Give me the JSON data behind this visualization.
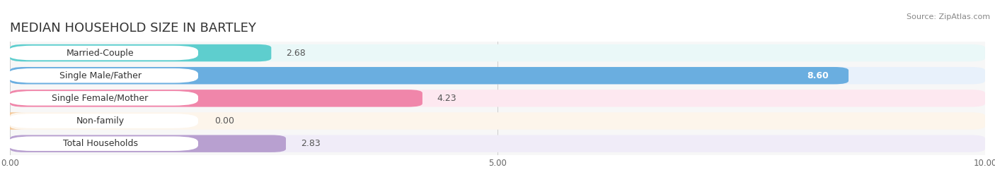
{
  "title": "MEDIAN HOUSEHOLD SIZE IN BARTLEY",
  "source": "Source: ZipAtlas.com",
  "categories": [
    "Married-Couple",
    "Single Male/Father",
    "Single Female/Mother",
    "Non-family",
    "Total Households"
  ],
  "values": [
    2.68,
    8.6,
    4.23,
    0.0,
    2.83
  ],
  "bar_colors": [
    "#5ecece",
    "#6aaee0",
    "#f086aa",
    "#f5c897",
    "#b8a0d0"
  ],
  "bar_bg_colors": [
    "#eaf8f8",
    "#e8f1fb",
    "#fde8f0",
    "#fdf5eb",
    "#f0ecf8"
  ],
  "label_bg_color": "#ffffff",
  "xlim": [
    0,
    10
  ],
  "xticks": [
    0.0,
    5.0,
    10.0
  ],
  "xtick_labels": [
    "0.00",
    "5.00",
    "10.00"
  ],
  "background_color": "#ffffff",
  "plot_bg_color": "#f7f7f7",
  "title_fontsize": 13,
  "label_fontsize": 9,
  "value_fontsize": 9,
  "source_fontsize": 8
}
